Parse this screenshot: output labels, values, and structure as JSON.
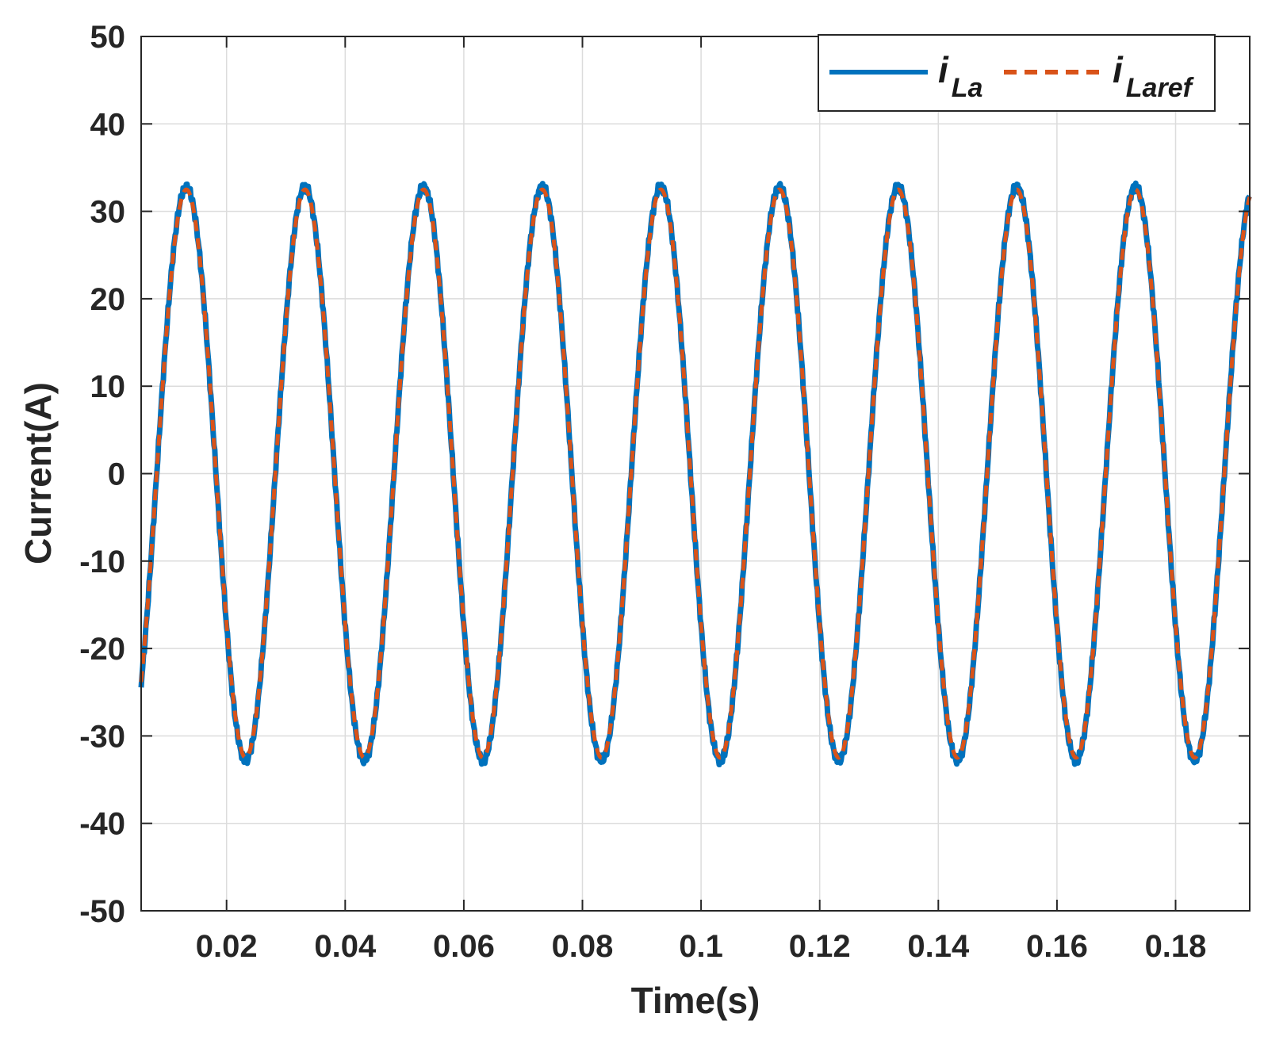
{
  "chart_data": {
    "type": "line",
    "title": "",
    "xlabel": "Time(s)",
    "ylabel": "Current(A)",
    "xlim": [
      0.0056,
      0.1925
    ],
    "ylim": [
      -50,
      50
    ],
    "grid": true,
    "legend_position": "top-right",
    "xticks": [
      0.02,
      0.04,
      0.06,
      0.08,
      0.1,
      0.12,
      0.14,
      0.16,
      0.18
    ],
    "xtick_labels": [
      "0.02",
      "0.04",
      "0.06",
      "0.08",
      "0.1",
      "0.12",
      "0.14",
      "0.16",
      "0.18"
    ],
    "yticks": [
      50,
      40,
      30,
      20,
      10,
      0,
      -10,
      -20,
      -30,
      -40,
      -50
    ],
    "ytick_labels": [
      "50",
      "40",
      "30",
      "20",
      "10",
      "0",
      "-10",
      "-20",
      "-30",
      "-40",
      "-50"
    ],
    "series": [
      {
        "name": "i_La",
        "legend_main": "i",
        "legend_sub": "La",
        "color": "#0072BD",
        "style": "solid",
        "amplitude": 32.8,
        "frequency_hz": 50,
        "phase_rad": 3.7,
        "ripple_amplitude": 0.6
      },
      {
        "name": "i_Laref",
        "legend_main": "i",
        "legend_sub": "Laref",
        "color": "#D95319",
        "style": "dashed",
        "amplitude": 32.5,
        "frequency_hz": 50,
        "phase_rad": 3.7,
        "ripple_amplitude": 0
      }
    ]
  }
}
